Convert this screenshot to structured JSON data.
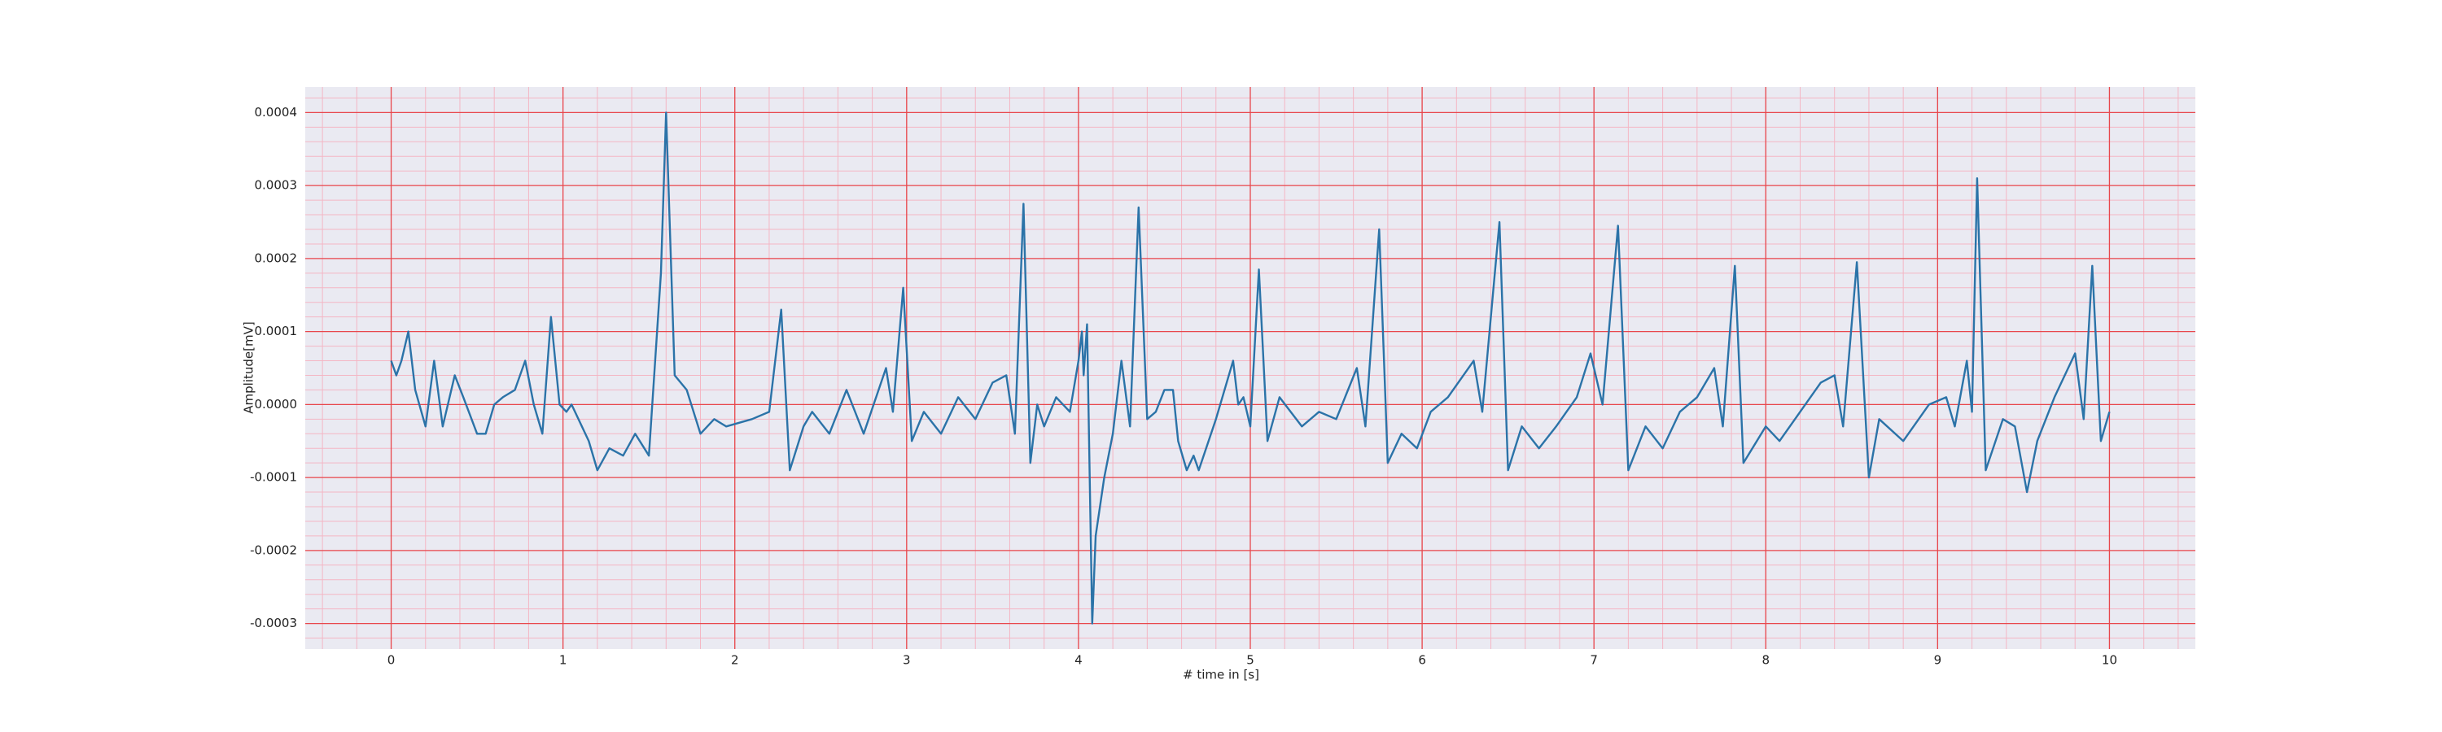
{
  "chart_data": {
    "type": "line",
    "xlabel": "# time in [s]",
    "ylabel": "Amplitude[mV]",
    "x": [
      0,
      0.03,
      0.06,
      0.1,
      0.14,
      0.2,
      0.25,
      0.3,
      0.37,
      0.42,
      0.5,
      0.55,
      0.6,
      0.65,
      0.72,
      0.78,
      0.83,
      0.88,
      0.93,
      0.98,
      1.02,
      1.05,
      1.15,
      1.2,
      1.27,
      1.35,
      1.42,
      1.5,
      1.57,
      1.6,
      1.65,
      1.72,
      1.8,
      1.88,
      1.95,
      2.1,
      2.2,
      2.27,
      2.32,
      2.4,
      2.45,
      2.55,
      2.65,
      2.75,
      2.88,
      2.92,
      2.98,
      3.03,
      3.1,
      3.2,
      3.3,
      3.4,
      3.5,
      3.58,
      3.63,
      3.68,
      3.72,
      3.76,
      3.8,
      3.87,
      3.95,
      4.0,
      4.02,
      4.03,
      4.05,
      4.08,
      4.1,
      4.15,
      4.2,
      4.25,
      4.3,
      4.35,
      4.4,
      4.45,
      4.5,
      4.55,
      4.58,
      4.63,
      4.67,
      4.7,
      4.8,
      4.9,
      4.93,
      4.96,
      5.0,
      5.05,
      5.1,
      5.17,
      5.3,
      5.4,
      5.5,
      5.62,
      5.67,
      5.75,
      5.8,
      5.88,
      5.97,
      6.05,
      6.15,
      6.3,
      6.35,
      6.45,
      6.5,
      6.58,
      6.68,
      6.78,
      6.9,
      6.98,
      7.05,
      7.14,
      7.2,
      7.3,
      7.4,
      7.5,
      7.6,
      7.7,
      7.75,
      7.82,
      7.87,
      8.0,
      8.08,
      8.2,
      8.32,
      8.4,
      8.45,
      8.53,
      8.6,
      8.66,
      8.8,
      8.95,
      9.05,
      9.1,
      9.17,
      9.2,
      9.23,
      9.28,
      9.38,
      9.45,
      9.52,
      9.58,
      9.68,
      9.8,
      9.85,
      9.9,
      9.95,
      10.0
    ],
    "values": [
      6e-05,
      4e-05,
      6e-05,
      0.0001,
      2e-05,
      -3e-05,
      6e-05,
      -3e-05,
      4e-05,
      1e-05,
      -4e-05,
      -4e-05,
      0,
      1e-05,
      2e-05,
      6e-05,
      0,
      -4e-05,
      0.00012,
      0,
      -1e-05,
      0,
      -5e-05,
      -9e-05,
      -6e-05,
      -7e-05,
      -4e-05,
      -7e-05,
      0.00018,
      0.0004,
      4e-05,
      2e-05,
      -4e-05,
      -2e-05,
      -3e-05,
      -2e-05,
      -1e-05,
      0.00013,
      -9e-05,
      -3e-05,
      -1e-05,
      -4e-05,
      2e-05,
      -4e-05,
      5e-05,
      -1e-05,
      0.00016,
      -5e-05,
      -1e-05,
      -4e-05,
      1e-05,
      -2e-05,
      3e-05,
      4e-05,
      -4e-05,
      0.000275,
      -8e-05,
      0,
      -3e-05,
      1e-05,
      -1e-05,
      6e-05,
      0.0001,
      4e-05,
      0.00011,
      -0.0003,
      -0.00018,
      -0.0001,
      -4e-05,
      6e-05,
      -3e-05,
      0.00027,
      -2e-05,
      -1e-05,
      2e-05,
      2e-05,
      -5e-05,
      -9e-05,
      -7e-05,
      -9e-05,
      -2e-05,
      6e-05,
      0,
      1e-05,
      -3e-05,
      0.000185,
      -5e-05,
      1e-05,
      -3e-05,
      -1e-05,
      -2e-05,
      5e-05,
      -3e-05,
      0.00024,
      -8e-05,
      -4e-05,
      -6e-05,
      -1e-05,
      1e-05,
      6e-05,
      -1e-05,
      0.00025,
      -9e-05,
      -3e-05,
      -6e-05,
      -3e-05,
      1e-05,
      7e-05,
      0,
      0.000245,
      -9e-05,
      -3e-05,
      -6e-05,
      -1e-05,
      1e-05,
      5e-05,
      -3e-05,
      0.00019,
      -8e-05,
      -3e-05,
      -5e-05,
      -1e-05,
      3e-05,
      4e-05,
      -3e-05,
      0.000195,
      -0.0001,
      -2e-05,
      -5e-05,
      0,
      1e-05,
      -3e-05,
      6e-05,
      -1e-05,
      0.00031,
      -9e-05,
      -2e-05,
      -3e-05,
      -0.00012,
      -5e-05,
      1e-05,
      7e-05,
      -2e-05,
      0.00019,
      -5e-05,
      -1e-05
    ],
    "color": "#2b73a8",
    "xlim": [
      -0.5,
      10.5
    ],
    "xticks": [
      0,
      1,
      2,
      3,
      4,
      5,
      6,
      7,
      8,
      9,
      10
    ],
    "ylim": [
      -0.000335,
      0.000435
    ],
    "yticks": [
      -0.0003,
      -0.0002,
      -0.0001,
      {
        "value": 0,
        "label": "0.0000"
      },
      0.0001,
      0.0002,
      0.0003,
      0.0004
    ],
    "grid": true,
    "minor_grid": true
  }
}
